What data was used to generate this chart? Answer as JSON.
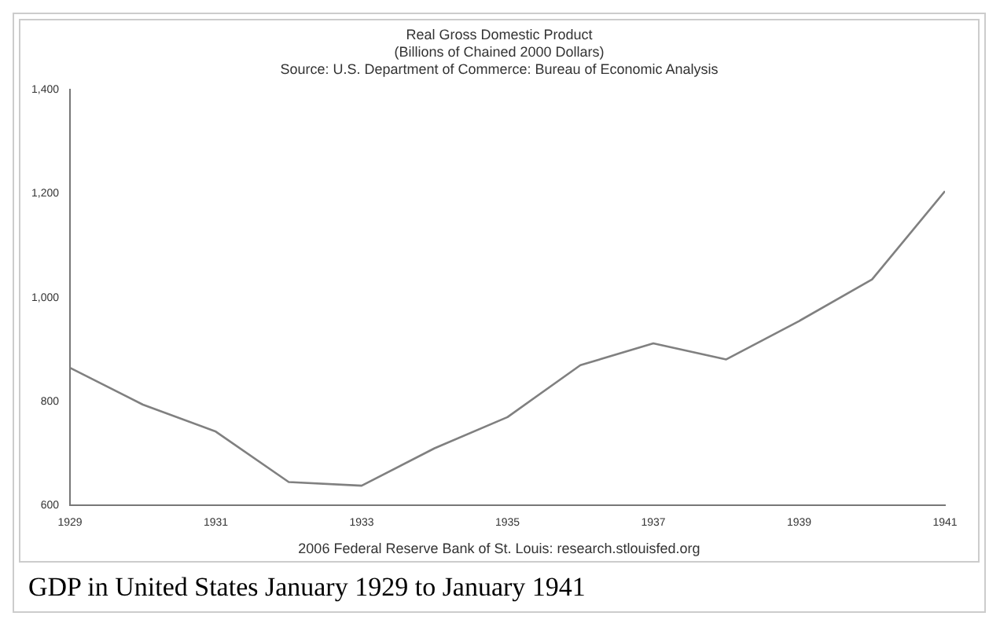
{
  "chart_data": {
    "type": "line",
    "title": "Real Gross Domestic Product",
    "subtitle": "(Billions of Chained 2000 Dollars)",
    "annotations": [
      "Source: U.S. Department of Commerce: Bureau of Economic Analysis",
      "2006 Federal Reserve Bank of St. Louis: research.stlouisfed.org",
      "GDP in United States January 1929 to January 1941"
    ],
    "x": [
      1929,
      1930,
      1931,
      1932,
      1933,
      1934,
      1935,
      1936,
      1937,
      1938,
      1939,
      1940,
      1941
    ],
    "series": [
      {
        "color": "#808080",
        "values": [
          865,
          794,
          742,
          645,
          638,
          710,
          770,
          870,
          912,
          881,
          955,
          1035,
          1205
        ]
      }
    ],
    "xlim": [
      1929,
      1941
    ],
    "xticks": [
      1929,
      1931,
      1933,
      1935,
      1937,
      1939,
      1941
    ],
    "ylim": [
      600,
      1400
    ],
    "yticks": [
      {
        "value": 600,
        "label": "600"
      },
      {
        "value": 800,
        "label": "800"
      },
      {
        "value": 1000,
        "label": "1,000"
      },
      {
        "value": 1200,
        "label": "1,200"
      },
      {
        "value": 1400,
        "label": "1,400"
      }
    ],
    "grid": false,
    "legend": false,
    "marker": "none",
    "line_style": "solid"
  }
}
